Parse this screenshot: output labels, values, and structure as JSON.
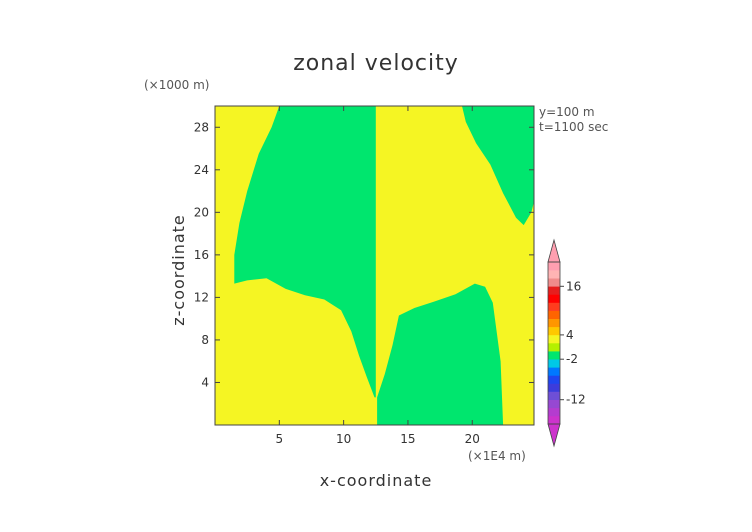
{
  "chart_data": {
    "type": "heatmap",
    "title": "zonal velocity",
    "xlabel": "x-coordinate",
    "ylabel": "z-coordinate",
    "x_unit": "(×1E4 m)",
    "y_unit": "(×1000 m)",
    "annotations": [
      "y=100 m",
      "t=1100 sec"
    ],
    "xlim": [
      0,
      24.8
    ],
    "ylim": [
      0,
      30
    ],
    "x_ticks": [
      5,
      10,
      15,
      20
    ],
    "y_ticks": [
      4,
      8,
      12,
      16,
      20,
      24,
      28
    ],
    "regions": [
      {
        "color": "#00e66e",
        "level": "-2 to 0",
        "points": [
          [
            1.5,
            13.3
          ],
          [
            2.5,
            13.6
          ],
          [
            4,
            13.8
          ],
          [
            5.5,
            12.8
          ],
          [
            7,
            12.2
          ],
          [
            8.5,
            11.8
          ],
          [
            9.8,
            10.8
          ],
          [
            10.6,
            8.8
          ],
          [
            11.2,
            6.5
          ],
          [
            11.8,
            4.5
          ],
          [
            12.4,
            2.6
          ],
          [
            12.5,
            2.6
          ],
          [
            12.5,
            30
          ],
          [
            5,
            30
          ],
          [
            4.4,
            28
          ],
          [
            3.4,
            25.5
          ],
          [
            2.5,
            22
          ],
          [
            1.9,
            19
          ],
          [
            1.5,
            16
          ],
          [
            1.5,
            13.3
          ]
        ]
      },
      {
        "color": "#00e66e",
        "level": "-2 to 0",
        "points": [
          [
            12.6,
            2.6
          ],
          [
            13.2,
            4.8
          ],
          [
            13.8,
            7.5
          ],
          [
            14.3,
            10.3
          ],
          [
            15.5,
            11
          ],
          [
            17,
            11.6
          ],
          [
            18.7,
            12.3
          ],
          [
            20.2,
            13.3
          ],
          [
            21,
            13
          ],
          [
            21.6,
            11.5
          ],
          [
            22.2,
            6
          ],
          [
            22.4,
            0
          ],
          [
            12.6,
            0
          ],
          [
            12.6,
            2.6
          ]
        ]
      },
      {
        "color": "#00e66e",
        "level": "-2 to 0",
        "points": [
          [
            19.2,
            30
          ],
          [
            19.5,
            28.5
          ],
          [
            20.3,
            26.5
          ],
          [
            21.4,
            24.5
          ],
          [
            22.4,
            21.8
          ],
          [
            23.4,
            19.5
          ],
          [
            24.0,
            18.8
          ],
          [
            24.6,
            20
          ],
          [
            24.8,
            21
          ],
          [
            24.8,
            30
          ],
          [
            19.2,
            30
          ]
        ]
      }
    ],
    "background_color": "#f5f523",
    "colorbar": {
      "min": -18,
      "max": 22,
      "step": 2,
      "labels": [
        "16",
        "4",
        "-2",
        "-12"
      ],
      "colors": [
        "#cc33cc",
        "#b43ccf",
        "#9648d2",
        "#6e4fd6",
        "#3c3cdc",
        "#1e46f0",
        "#0078ff",
        "#00c8e6",
        "#00e66e",
        "#b4f000",
        "#f5f523",
        "#ffc800",
        "#ff9600",
        "#ff6400",
        "#ff3c1e",
        "#ff0000",
        "#e61e1e",
        "#f08c8c",
        "#ffb4b4",
        "#ff9fb0"
      ]
    }
  }
}
